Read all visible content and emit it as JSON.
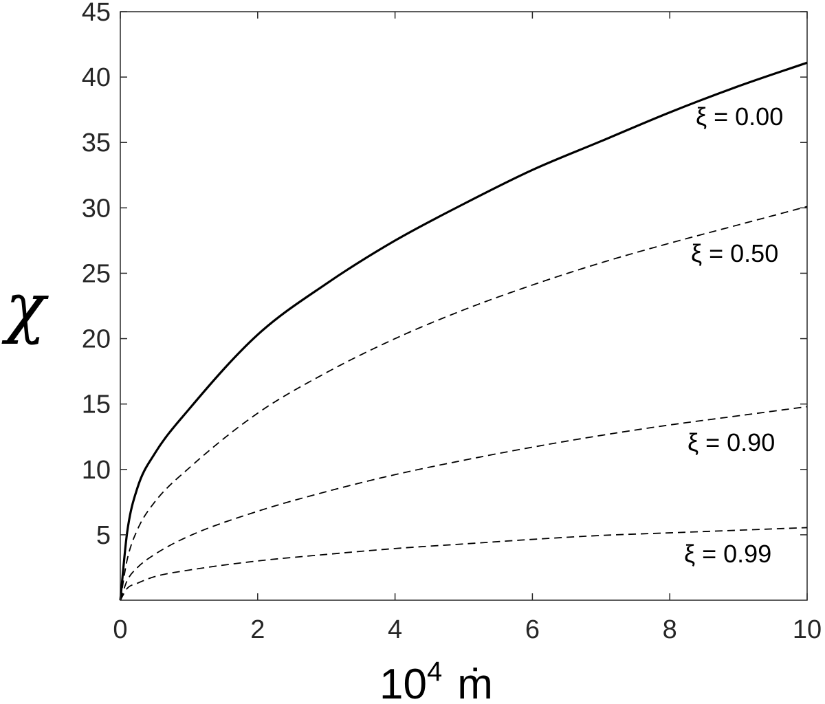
{
  "chart_data": {
    "type": "line",
    "xlabel": {
      "base": "10",
      "exponent": "4",
      "symbol": "ṁ"
    },
    "ylabel": "χ",
    "xlim": [
      0,
      10
    ],
    "ylim": [
      0,
      45
    ],
    "x_ticks": [
      0,
      2,
      4,
      6,
      8,
      10
    ],
    "y_ticks": [
      5,
      10,
      15,
      20,
      25,
      30,
      35,
      40,
      45
    ],
    "grid": false,
    "x": [
      0,
      0.1,
      0.25,
      0.5,
      1,
      2,
      3,
      4,
      5,
      6,
      7,
      8,
      9,
      10
    ],
    "series": [
      {
        "name": "ξ = 0.00",
        "style": "solid",
        "values": [
          0,
          5.2,
          8.6,
          11.2,
          14.6,
          20.3,
          24.2,
          27.5,
          30.3,
          32.9,
          35.1,
          37.3,
          39.3,
          41.1
        ]
      },
      {
        "name": "ξ = 0.50",
        "style": "dashed",
        "values": [
          0,
          3.1,
          5.4,
          7.5,
          10.1,
          14.3,
          17.4,
          20.0,
          22.2,
          24.1,
          25.8,
          27.3,
          28.7,
          30.1
        ]
      },
      {
        "name": "ξ = 0.90",
        "style": "dashed",
        "values": [
          0,
          1.5,
          2.5,
          3.5,
          4.9,
          6.8,
          8.3,
          9.6,
          10.7,
          11.7,
          12.6,
          13.4,
          14.1,
          14.8
        ]
      },
      {
        "name": "ξ = 0.99",
        "style": "dashed",
        "values": [
          0,
          0.9,
          1.3,
          1.8,
          2.3,
          3.0,
          3.5,
          3.95,
          4.3,
          4.65,
          4.95,
          5.15,
          5.35,
          5.55
        ]
      }
    ],
    "colors": {
      "line": "#000000",
      "axis": "#262626",
      "background": "#ffffff"
    }
  }
}
